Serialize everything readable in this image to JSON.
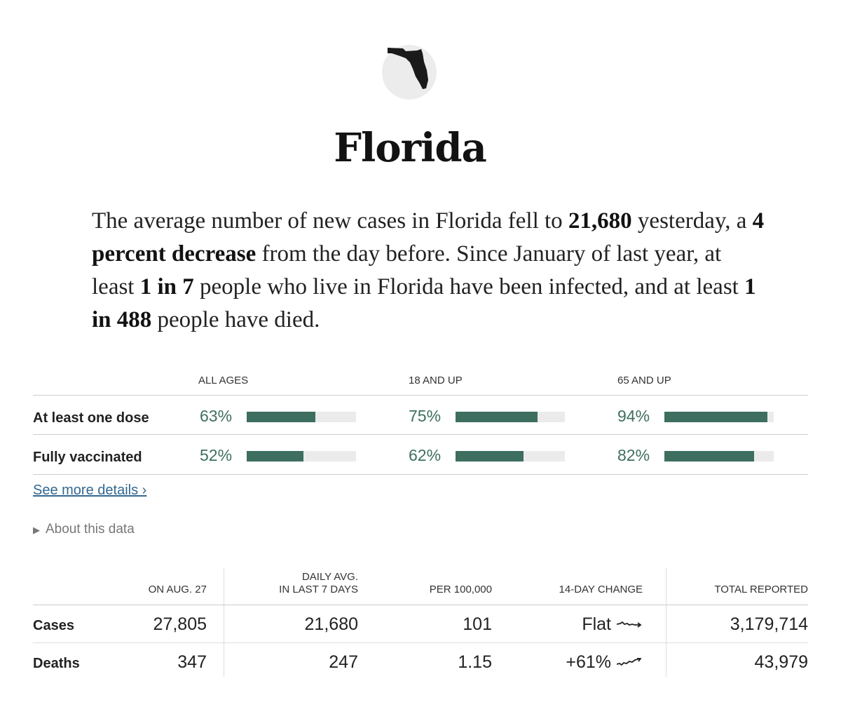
{
  "state": "Florida",
  "summary": {
    "p1": "The average number of new cases in Florida fell to ",
    "avg": "21,680",
    "p2": " yesterday, a ",
    "change": "4 percent decrease",
    "p3": " from the day before. Since January of last year, at least ",
    "infected": "1 in 7",
    "p4": " people who live in Florida have been infected, and at least ",
    "died": "1 in 488",
    "p5": " people have died."
  },
  "vaccination": {
    "columns": [
      "ALL AGES",
      "18 AND UP",
      "65 AND UP"
    ],
    "rows": [
      {
        "label": "At least one dose",
        "values": [
          "63%",
          "75%",
          "94%"
        ],
        "fractions": [
          0.63,
          0.75,
          0.94
        ]
      },
      {
        "label": "Fully vaccinated",
        "values": [
          "52%",
          "62%",
          "82%"
        ],
        "fractions": [
          0.52,
          0.62,
          0.82
        ]
      }
    ],
    "bar_color": "#3d6e5f"
  },
  "links": {
    "more": "See more details ›",
    "about": "About this data",
    "about_icon": "triangle-right-icon"
  },
  "stats": {
    "headers": [
      "ON AUG. 27",
      "DAILY AVG.",
      "IN LAST 7 DAYS",
      "PER 100,000",
      "14-DAY CHANGE",
      "TOTAL REPORTED"
    ],
    "rows": [
      {
        "label": "Cases",
        "on_date": "27,805",
        "daily_avg": "21,680",
        "per_100k": "101",
        "change": "Flat",
        "total": "3,179,714"
      },
      {
        "label": "Deaths",
        "on_date": "347",
        "daily_avg": "247",
        "per_100k": "1.15",
        "change": "+61%",
        "total": "43,979"
      }
    ]
  }
}
